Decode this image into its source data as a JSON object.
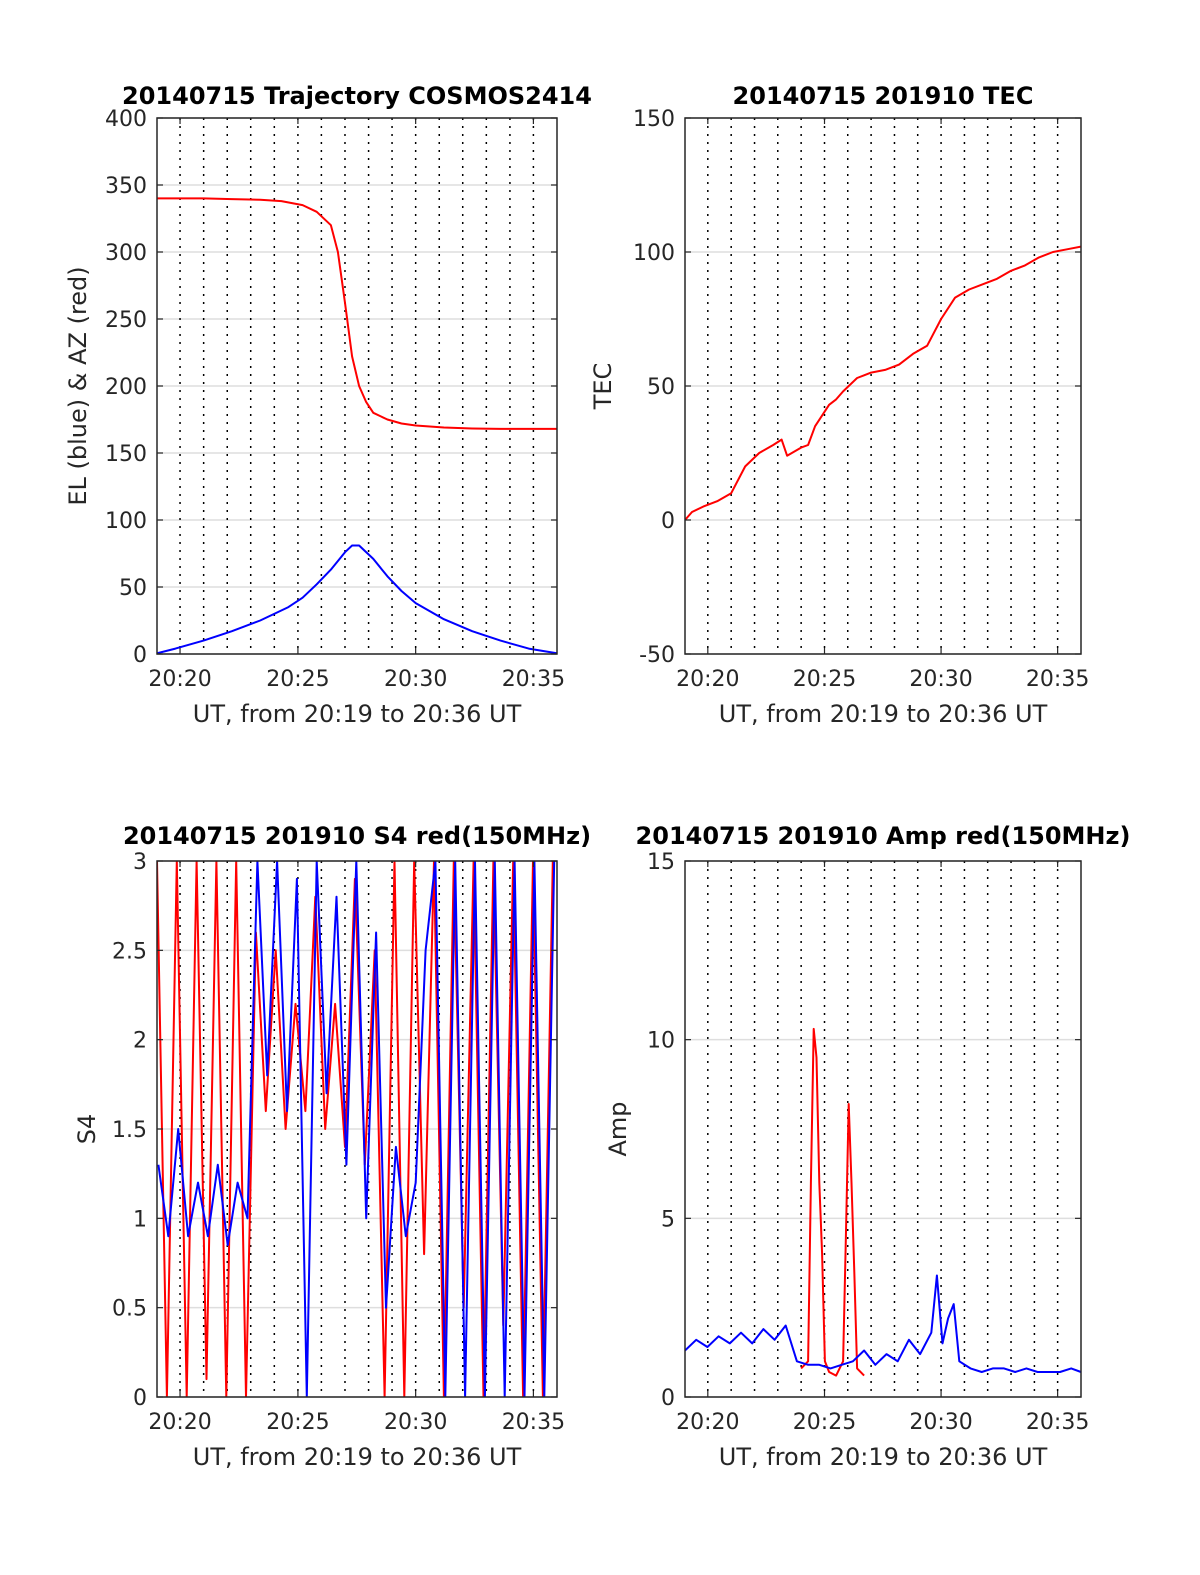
{
  "chart_data": [
    {
      "type": "line",
      "title": "20140715 Trajectory COSMOS2414",
      "xlabel": "UT, from 20:19 to 20:36 UT",
      "ylabel": "EL (blue) & AZ (red)",
      "xlim": [
        20.317,
        20.6
      ],
      "ylim": [
        0,
        400
      ],
      "xticks": [
        20.3333,
        20.4167,
        20.5,
        20.5833
      ],
      "xticklabels": [
        "20:20",
        "20:25",
        "20:30",
        "20:35"
      ],
      "yticks": [
        0,
        50,
        100,
        150,
        200,
        250,
        300,
        350,
        400
      ],
      "yticklabels": [
        "0",
        "50",
        "100",
        "150",
        "200",
        "250",
        "300",
        "350",
        "400"
      ],
      "vgrid_minutes": [
        20.3333,
        20.35,
        20.3667,
        20.3833,
        20.4,
        20.4167,
        20.4333,
        20.45,
        20.4667,
        20.4833,
        20.5,
        20.5167,
        20.5333,
        20.55,
        20.5667,
        20.5833
      ],
      "grid": "x dotted",
      "series": [
        {
          "color": "#ff0000",
          "x": [
            20.317,
            20.33,
            20.35,
            20.37,
            20.39,
            20.405,
            20.42,
            20.43,
            20.44,
            20.445,
            20.45,
            20.455,
            20.46,
            20.465,
            20.47,
            20.48,
            20.49,
            20.5,
            20.52,
            20.54,
            20.56,
            20.58,
            20.6
          ],
          "values": [
            340,
            340,
            340,
            339.5,
            339,
            338,
            335,
            330,
            320,
            300,
            262,
            222,
            200,
            188,
            180,
            175,
            172,
            170.5,
            169,
            168.3,
            168,
            168,
            168
          ]
        },
        {
          "color": "#0000ff",
          "x": [
            20.317,
            20.33,
            20.35,
            20.37,
            20.39,
            20.41,
            20.42,
            20.43,
            20.44,
            20.45,
            20.455,
            20.46,
            20.47,
            20.48,
            20.49,
            20.5,
            20.52,
            20.54,
            20.56,
            20.58,
            20.6
          ],
          "values": [
            0.5,
            4,
            10,
            17,
            25,
            35,
            42,
            52,
            63,
            76,
            81,
            81,
            71,
            58,
            47,
            38,
            26,
            17,
            10,
            4,
            0.5
          ]
        }
      ]
    },
    {
      "type": "line",
      "title": "20140715 201910 TEC",
      "xlabel": "UT, from 20:19 to 20:36 UT",
      "ylabel": "TEC",
      "xlim": [
        20.317,
        20.6
      ],
      "ylim": [
        -50,
        150
      ],
      "xticks": [
        20.3333,
        20.4167,
        20.5,
        20.5833
      ],
      "xticklabels": [
        "20:20",
        "20:25",
        "20:30",
        "20:35"
      ],
      "yticks": [
        -50,
        0,
        50,
        100,
        150
      ],
      "yticklabels": [
        "-50",
        "0",
        "50",
        "100",
        "150"
      ],
      "vgrid_minutes": [
        20.3333,
        20.35,
        20.3667,
        20.3833,
        20.4,
        20.4167,
        20.4333,
        20.45,
        20.4667,
        20.4833,
        20.5,
        20.5167,
        20.5333,
        20.55,
        20.5667,
        20.5833
      ],
      "grid": "x dotted",
      "series": [
        {
          "color": "#ff0000",
          "x": [
            20.317,
            20.322,
            20.33,
            20.34,
            20.35,
            20.36,
            20.37,
            20.38,
            20.386,
            20.39,
            20.4,
            20.405,
            20.41,
            20.42,
            20.425,
            20.43,
            20.44,
            20.445,
            20.45,
            20.46,
            20.47,
            20.48,
            20.49,
            20.5,
            20.51,
            20.52,
            20.53,
            20.54,
            20.55,
            20.56,
            20.57,
            20.58,
            20.59,
            20.6
          ],
          "values": [
            0,
            3,
            5,
            7,
            10,
            20,
            25,
            28,
            30,
            24,
            27,
            28,
            35,
            43,
            45,
            48,
            53,
            54,
            55,
            56,
            58,
            62,
            65,
            75,
            83,
            86,
            88,
            90,
            93,
            95,
            98,
            100,
            101,
            102
          ]
        }
      ]
    },
    {
      "type": "line",
      "title": "20140715 201910 S4 red(150MHz)",
      "xlabel": "UT, from 20:19 to 20:36 UT",
      "ylabel": "S4",
      "xlim": [
        20.317,
        20.6
      ],
      "ylim": [
        0,
        3
      ],
      "xticks": [
        20.3333,
        20.4167,
        20.5,
        20.5833
      ],
      "xticklabels": [
        "20:20",
        "20:25",
        "20:30",
        "20:35"
      ],
      "yticks": [
        0,
        0.5,
        1,
        1.5,
        2,
        2.5,
        3
      ],
      "yticklabels": [
        "0",
        "0.5",
        "1",
        "1.5",
        "2",
        "2.5",
        "3"
      ],
      "vgrid_minutes": [
        20.3333,
        20.35,
        20.3667,
        20.3833,
        20.4,
        20.4167,
        20.4333,
        20.45,
        20.4667,
        20.4833,
        20.5,
        20.5167,
        20.5333,
        20.55,
        20.5667,
        20.5833
      ],
      "grid": "x dotted",
      "series": [
        {
          "color": "#ff0000",
          "x": [
            20.317,
            20.324,
            20.331,
            20.338,
            20.345,
            20.352,
            20.359,
            20.366,
            20.373,
            20.38,
            20.387,
            20.394,
            20.401,
            20.408,
            20.415,
            20.422,
            20.429,
            20.436,
            20.443,
            20.45,
            20.457,
            20.464,
            20.471,
            20.478,
            20.485,
            20.492,
            20.499,
            20.506,
            20.513,
            20.52,
            20.527,
            20.534,
            20.541,
            20.548,
            20.555,
            20.562,
            20.569,
            20.576,
            20.583,
            20.59,
            20.597
          ],
          "values": [
            3,
            0,
            3,
            0,
            3,
            0.1,
            3,
            0,
            3,
            0,
            2.6,
            1.6,
            2.5,
            1.5,
            2.2,
            1.6,
            2.8,
            1.5,
            2.2,
            1.4,
            2.9,
            1.3,
            2.5,
            0,
            3,
            0,
            3,
            0.8,
            3,
            0,
            3,
            0.5,
            3,
            0,
            3,
            0.4,
            3,
            0,
            3,
            0,
            3
          ]
        },
        {
          "color": "#0000ff",
          "x": [
            20.318,
            20.325,
            20.332,
            20.339,
            20.346,
            20.353,
            20.36,
            20.367,
            20.374,
            20.381,
            20.388,
            20.395,
            20.402,
            20.409,
            20.416,
            20.423,
            20.43,
            20.437,
            20.444,
            20.451,
            20.458,
            20.465,
            20.472,
            20.479,
            20.486,
            20.493,
            20.5,
            20.507,
            20.514,
            20.521,
            20.528,
            20.535,
            20.542,
            20.549,
            20.556,
            20.563,
            20.57,
            20.577,
            20.584,
            20.591,
            20.598
          ],
          "values": [
            1.3,
            0.9,
            1.5,
            0.9,
            1.2,
            0.9,
            1.3,
            0.85,
            1.2,
            1.0,
            3,
            1.8,
            3,
            1.6,
            2.9,
            0,
            3,
            1.7,
            2.8,
            1.3,
            3,
            1.0,
            2.6,
            0.5,
            1.4,
            0.9,
            1.2,
            2.5,
            3,
            0,
            3,
            0,
            3,
            0,
            3,
            0,
            3,
            0,
            3,
            0,
            3
          ]
        }
      ]
    },
    {
      "type": "line",
      "title": "20140715 201910 Amp red(150MHz)",
      "xlabel": "UT, from 20:19 to 20:36 UT",
      "ylabel": "Amp",
      "xlim": [
        20.317,
        20.6
      ],
      "ylim": [
        0,
        15
      ],
      "xticks": [
        20.3333,
        20.4167,
        20.5,
        20.5833
      ],
      "xticklabels": [
        "20:20",
        "20:25",
        "20:30",
        "20:35"
      ],
      "yticks": [
        0,
        5,
        10,
        15
      ],
      "yticklabels": [
        "0",
        "5",
        "10",
        "15"
      ],
      "vgrid_minutes": [
        20.3333,
        20.35,
        20.3667,
        20.3833,
        20.4,
        20.4167,
        20.4333,
        20.45,
        20.4667,
        20.4833,
        20.5,
        20.5167,
        20.5333,
        20.55,
        20.5667,
        20.5833
      ],
      "grid": "x dotted",
      "series": [
        {
          "color": "#ff0000",
          "x": [
            20.4,
            20.405,
            20.407,
            20.409,
            20.411,
            20.413,
            20.415,
            20.417,
            20.42,
            20.425,
            20.43,
            20.432,
            20.434,
            20.436,
            20.438,
            20.44,
            20.445
          ],
          "values": [
            0.8,
            1.0,
            6.0,
            10.3,
            9.5,
            6.0,
            4.0,
            1.0,
            0.7,
            0.6,
            1.0,
            4.5,
            8.2,
            6.0,
            3.5,
            0.8,
            0.6
          ]
        },
        {
          "color": "#0000ff",
          "x": [
            20.317,
            20.325,
            20.333,
            20.341,
            20.349,
            20.357,
            20.365,
            20.373,
            20.381,
            20.389,
            20.397,
            20.405,
            20.413,
            20.421,
            20.429,
            20.437,
            20.445,
            20.453,
            20.461,
            20.469,
            20.477,
            20.485,
            20.493,
            20.497,
            20.501,
            20.505,
            20.509,
            20.513,
            20.521,
            20.529,
            20.537,
            20.545,
            20.553,
            20.561,
            20.569,
            20.577,
            20.585,
            20.593,
            20.6
          ],
          "values": [
            1.3,
            1.6,
            1.4,
            1.7,
            1.5,
            1.8,
            1.5,
            1.9,
            1.6,
            2.0,
            1.0,
            0.9,
            0.9,
            0.8,
            0.9,
            1.0,
            1.3,
            0.9,
            1.2,
            1.0,
            1.6,
            1.2,
            1.8,
            3.4,
            1.5,
            2.2,
            2.6,
            1.0,
            0.8,
            0.7,
            0.8,
            0.8,
            0.7,
            0.8,
            0.7,
            0.7,
            0.7,
            0.8,
            0.7
          ]
        }
      ]
    }
  ]
}
